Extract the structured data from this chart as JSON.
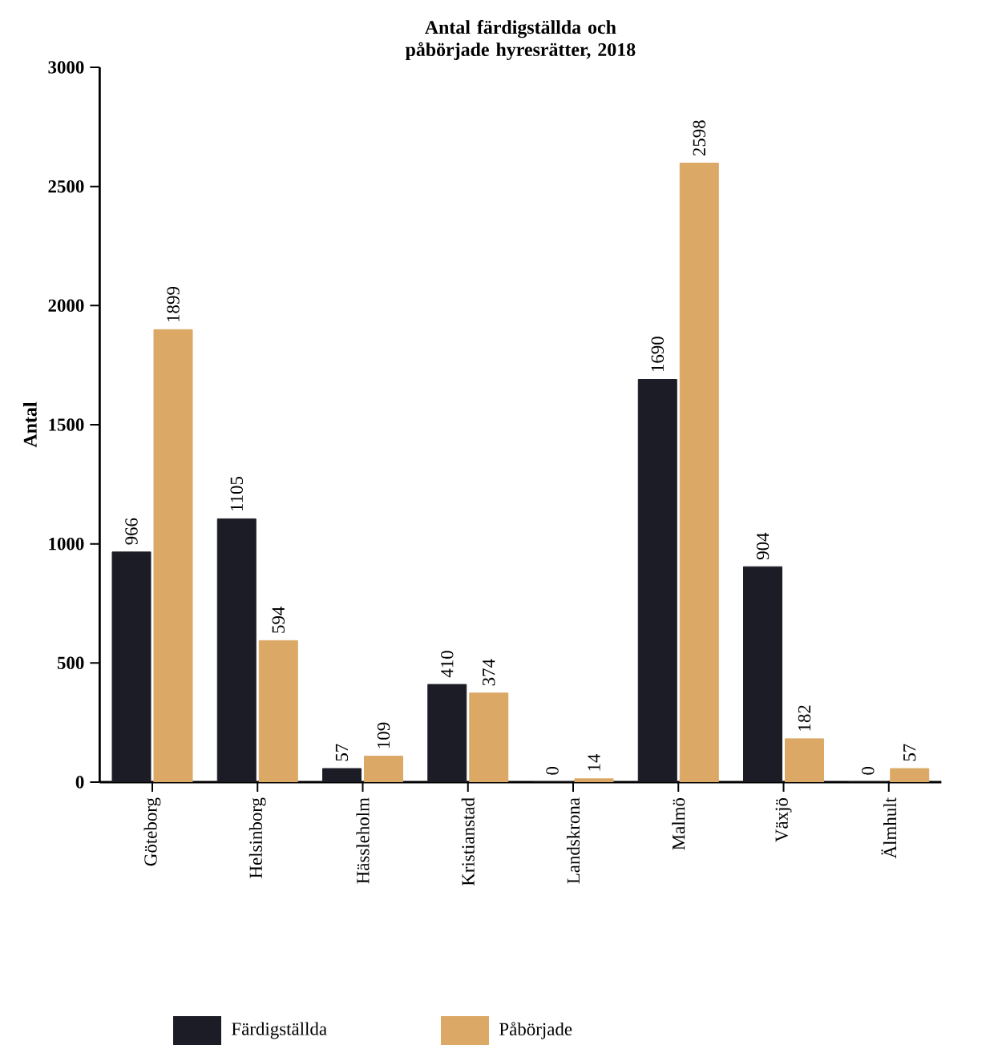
{
  "chart_data": {
    "type": "bar",
    "title": "Antal färdigställda och påbörjade hyresrätter, 2018",
    "categories": [
      "Göteborg",
      "Helsinborg",
      "Hässleholm",
      "Kristianstad",
      "Landskrona",
      "Malmö",
      "Växjö",
      "Älmhult"
    ],
    "series": [
      {
        "name": "Färdigställda",
        "color": "#1c1c26",
        "values": [
          966,
          1105,
          57,
          410,
          0,
          1690,
          904,
          0
        ]
      },
      {
        "name": "Påbörjade",
        "color": "#dba865",
        "values": [
          1899,
          594,
          109,
          374,
          14,
          2598,
          182,
          57
        ]
      }
    ],
    "ylabel": "Antal",
    "ylim": [
      0,
      3000
    ],
    "yticks": [
      0,
      500,
      1000,
      1500,
      2000,
      2500,
      3000
    ],
    "data_labels": true,
    "legend": "bottom",
    "grid": false
  }
}
